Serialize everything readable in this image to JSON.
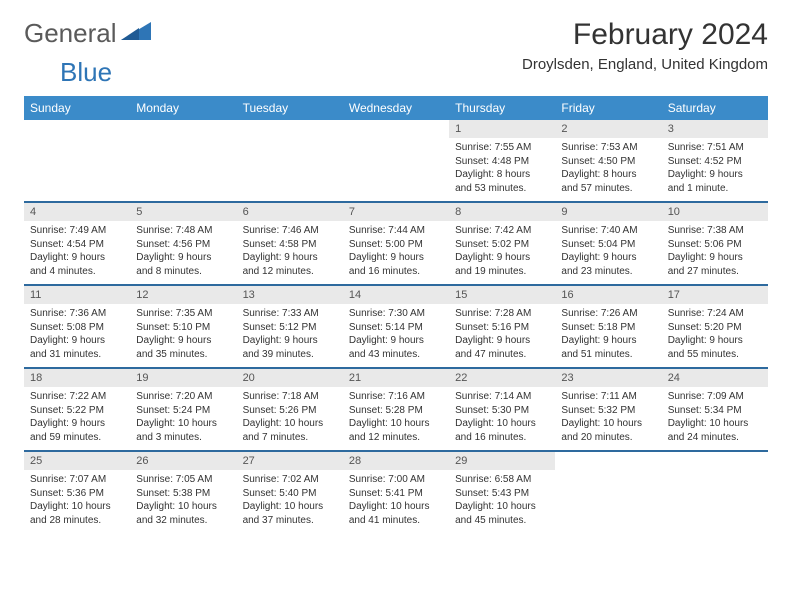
{
  "brand": {
    "part1": "General",
    "part2": "Blue"
  },
  "title": "February 2024",
  "location": "Droylsden, England, United Kingdom",
  "colors": {
    "header_bg": "#3b8bc9",
    "header_text": "#ffffff",
    "sep": "#2e6a9e",
    "daynum_bg": "#e9e9e9",
    "body_text": "#333333",
    "brand_gray": "#5a5a5a",
    "brand_blue": "#2e75b6"
  },
  "day_labels": [
    "Sunday",
    "Monday",
    "Tuesday",
    "Wednesday",
    "Thursday",
    "Friday",
    "Saturday"
  ],
  "weeks": [
    [
      null,
      null,
      null,
      null,
      {
        "n": "1",
        "sr": "7:55 AM",
        "ss": "4:48 PM",
        "dl": "8 hours and 53 minutes."
      },
      {
        "n": "2",
        "sr": "7:53 AM",
        "ss": "4:50 PM",
        "dl": "8 hours and 57 minutes."
      },
      {
        "n": "3",
        "sr": "7:51 AM",
        "ss": "4:52 PM",
        "dl": "9 hours and 1 minute."
      }
    ],
    [
      {
        "n": "4",
        "sr": "7:49 AM",
        "ss": "4:54 PM",
        "dl": "9 hours and 4 minutes."
      },
      {
        "n": "5",
        "sr": "7:48 AM",
        "ss": "4:56 PM",
        "dl": "9 hours and 8 minutes."
      },
      {
        "n": "6",
        "sr": "7:46 AM",
        "ss": "4:58 PM",
        "dl": "9 hours and 12 minutes."
      },
      {
        "n": "7",
        "sr": "7:44 AM",
        "ss": "5:00 PM",
        "dl": "9 hours and 16 minutes."
      },
      {
        "n": "8",
        "sr": "7:42 AM",
        "ss": "5:02 PM",
        "dl": "9 hours and 19 minutes."
      },
      {
        "n": "9",
        "sr": "7:40 AM",
        "ss": "5:04 PM",
        "dl": "9 hours and 23 minutes."
      },
      {
        "n": "10",
        "sr": "7:38 AM",
        "ss": "5:06 PM",
        "dl": "9 hours and 27 minutes."
      }
    ],
    [
      {
        "n": "11",
        "sr": "7:36 AM",
        "ss": "5:08 PM",
        "dl": "9 hours and 31 minutes."
      },
      {
        "n": "12",
        "sr": "7:35 AM",
        "ss": "5:10 PM",
        "dl": "9 hours and 35 minutes."
      },
      {
        "n": "13",
        "sr": "7:33 AM",
        "ss": "5:12 PM",
        "dl": "9 hours and 39 minutes."
      },
      {
        "n": "14",
        "sr": "7:30 AM",
        "ss": "5:14 PM",
        "dl": "9 hours and 43 minutes."
      },
      {
        "n": "15",
        "sr": "7:28 AM",
        "ss": "5:16 PM",
        "dl": "9 hours and 47 minutes."
      },
      {
        "n": "16",
        "sr": "7:26 AM",
        "ss": "5:18 PM",
        "dl": "9 hours and 51 minutes."
      },
      {
        "n": "17",
        "sr": "7:24 AM",
        "ss": "5:20 PM",
        "dl": "9 hours and 55 minutes."
      }
    ],
    [
      {
        "n": "18",
        "sr": "7:22 AM",
        "ss": "5:22 PM",
        "dl": "9 hours and 59 minutes."
      },
      {
        "n": "19",
        "sr": "7:20 AM",
        "ss": "5:24 PM",
        "dl": "10 hours and 3 minutes."
      },
      {
        "n": "20",
        "sr": "7:18 AM",
        "ss": "5:26 PM",
        "dl": "10 hours and 7 minutes."
      },
      {
        "n": "21",
        "sr": "7:16 AM",
        "ss": "5:28 PM",
        "dl": "10 hours and 12 minutes."
      },
      {
        "n": "22",
        "sr": "7:14 AM",
        "ss": "5:30 PM",
        "dl": "10 hours and 16 minutes."
      },
      {
        "n": "23",
        "sr": "7:11 AM",
        "ss": "5:32 PM",
        "dl": "10 hours and 20 minutes."
      },
      {
        "n": "24",
        "sr": "7:09 AM",
        "ss": "5:34 PM",
        "dl": "10 hours and 24 minutes."
      }
    ],
    [
      {
        "n": "25",
        "sr": "7:07 AM",
        "ss": "5:36 PM",
        "dl": "10 hours and 28 minutes."
      },
      {
        "n": "26",
        "sr": "7:05 AM",
        "ss": "5:38 PM",
        "dl": "10 hours and 32 minutes."
      },
      {
        "n": "27",
        "sr": "7:02 AM",
        "ss": "5:40 PM",
        "dl": "10 hours and 37 minutes."
      },
      {
        "n": "28",
        "sr": "7:00 AM",
        "ss": "5:41 PM",
        "dl": "10 hours and 41 minutes."
      },
      {
        "n": "29",
        "sr": "6:58 AM",
        "ss": "5:43 PM",
        "dl": "10 hours and 45 minutes."
      },
      null,
      null
    ]
  ],
  "labels": {
    "sunrise": "Sunrise:",
    "sunset": "Sunset:",
    "daylight": "Daylight:"
  }
}
